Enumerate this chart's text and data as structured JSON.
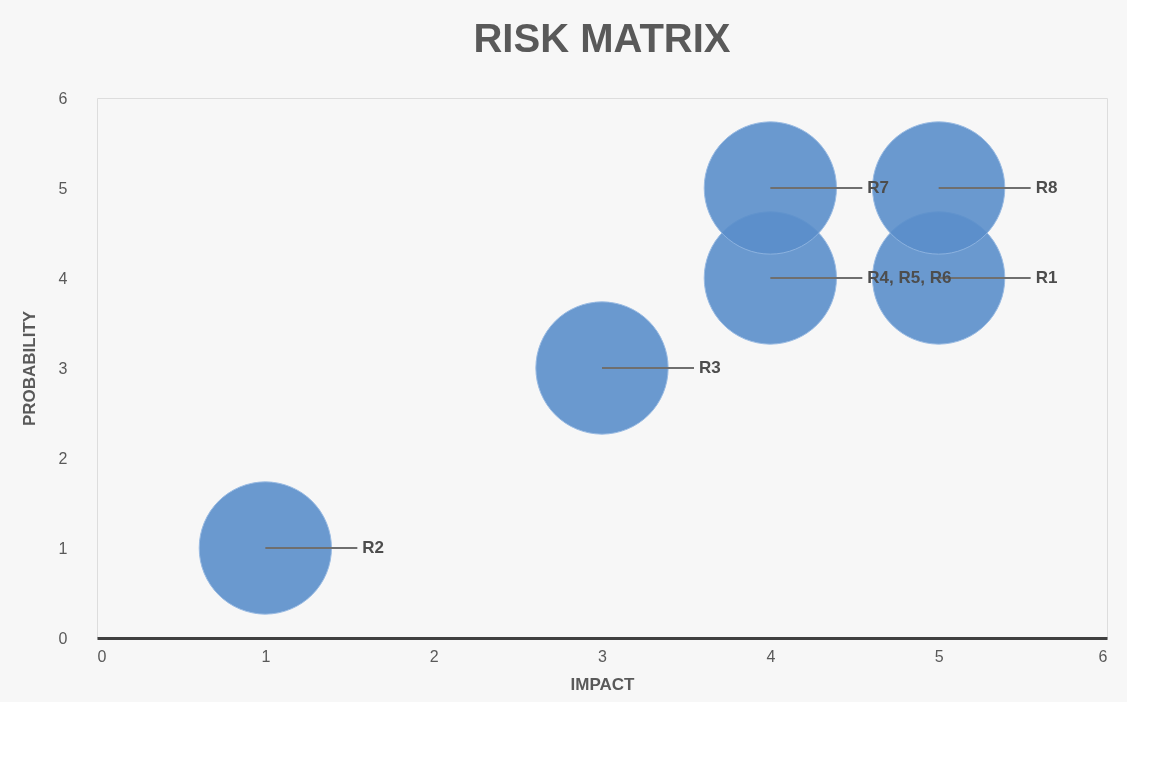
{
  "chart_data": {
    "type": "bubble",
    "title": "RISK  MATRIX",
    "xlabel": "IMPACT",
    "ylabel": "PROBABILITY",
    "x": [
      5,
      1,
      3,
      4,
      4,
      5
    ],
    "series": [
      {
        "color": "#5b8fcb",
        "values": [
          4,
          1,
          3,
          4,
          5,
          5
        ],
        "sizes": [
          1,
          1,
          1,
          1,
          1,
          1
        ]
      }
    ],
    "annotations": [
      {
        "text": "R1",
        "x": 5,
        "y": 4
      },
      {
        "text": "R2",
        "x": 1,
        "y": 1
      },
      {
        "text": "R3",
        "x": 3,
        "y": 3
      },
      {
        "text": "R4, R5, R6",
        "x": 4,
        "y": 4
      },
      {
        "text": "R7",
        "x": 4,
        "y": 5
      },
      {
        "text": "R8",
        "x": 5,
        "y": 5
      }
    ],
    "xlim": [
      0,
      6
    ],
    "ylim": [
      0,
      6
    ],
    "xticks": [
      0,
      1,
      2,
      3,
      4,
      5,
      6
    ],
    "yticks": [
      0,
      1,
      2,
      3,
      4,
      5,
      6
    ],
    "grid": false,
    "legend": false
  }
}
